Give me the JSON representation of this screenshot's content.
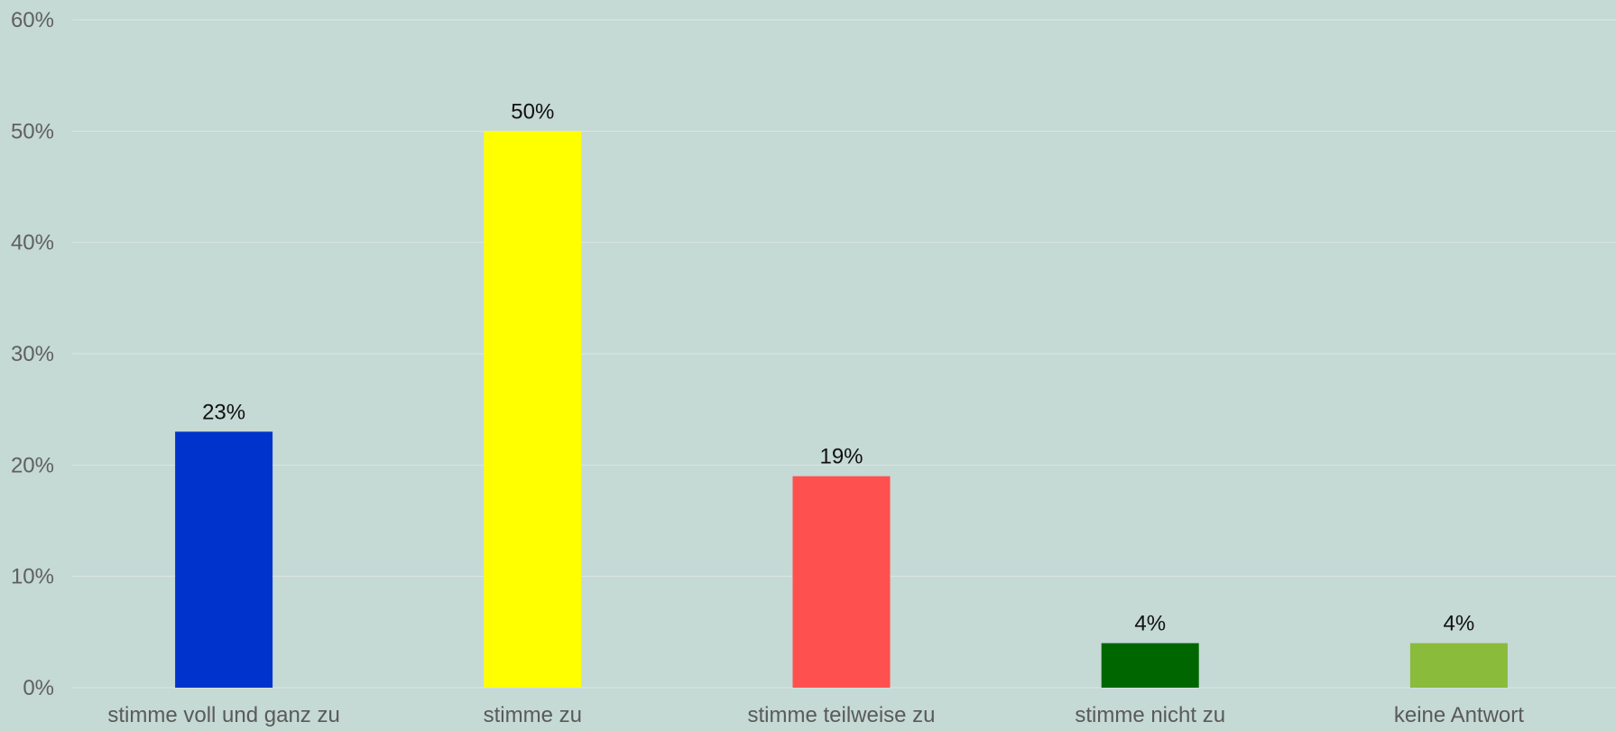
{
  "chart_data": {
    "type": "bar",
    "categories": [
      "stimme voll und ganz zu",
      "stimme zu",
      "stimme teilweise zu",
      "stimme nicht zu",
      "keine Antwort"
    ],
    "values": [
      23,
      50,
      19,
      4,
      4
    ],
    "data_labels": [
      "23%",
      "50%",
      "19%",
      "4%",
      "4%"
    ],
    "colors": [
      "#0033cc",
      "#ffff00",
      "#ff5050",
      "#006600",
      "#8abb3a"
    ],
    "y_ticks": [
      0,
      10,
      20,
      30,
      40,
      50,
      60
    ],
    "y_tick_labels": [
      "0%",
      "10%",
      "20%",
      "30%",
      "40%",
      "50%",
      "60%"
    ],
    "ylim": [
      0,
      60
    ],
    "grid": true,
    "legend": "none",
    "background": "#c5d9d5"
  }
}
